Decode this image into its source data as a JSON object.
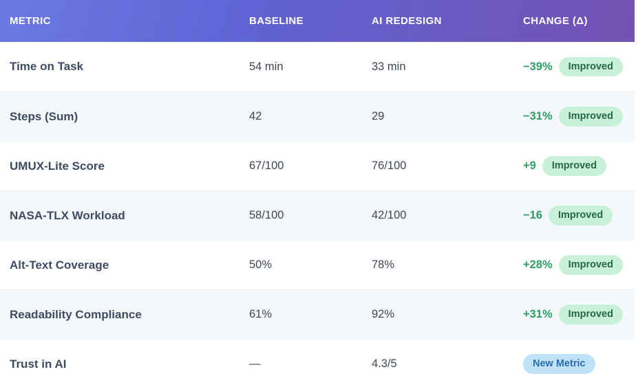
{
  "table": {
    "columns": [
      {
        "label": "METRIC"
      },
      {
        "label": "BASELINE"
      },
      {
        "label": "AI REDESIGN"
      },
      {
        "label": "CHANGE (Δ)"
      }
    ],
    "rows": [
      {
        "metric": "Time on Task",
        "baseline": "54 min",
        "redesign": "33 min",
        "delta": "−39%",
        "badge": "Improved",
        "badge_type": "improved"
      },
      {
        "metric": "Steps (Sum)",
        "baseline": "42",
        "redesign": "29",
        "delta": "−31%",
        "badge": "Improved",
        "badge_type": "improved"
      },
      {
        "metric": "UMUX-Lite Score",
        "baseline": "67/100",
        "redesign": "76/100",
        "delta": "+9",
        "badge": "Improved",
        "badge_type": "improved"
      },
      {
        "metric": "NASA-TLX Workload",
        "baseline": "58/100",
        "redesign": "42/100",
        "delta": "−16",
        "badge": "Improved",
        "badge_type": "improved"
      },
      {
        "metric": "Alt-Text Coverage",
        "baseline": "50%",
        "redesign": "78%",
        "delta": "+28%",
        "badge": "Improved",
        "badge_type": "improved"
      },
      {
        "metric": "Readability Compliance",
        "baseline": "61%",
        "redesign": "92%",
        "delta": "+31%",
        "badge": "Improved",
        "badge_type": "improved"
      },
      {
        "metric": "Trust in AI",
        "baseline": "—",
        "redesign": "4.3/5",
        "delta": "",
        "badge": "New Metric",
        "badge_type": "new"
      }
    ],
    "colors": {
      "header_gradient_start": "#6b79e4",
      "header_gradient_end": "#7452b2",
      "delta_green": "#2f9e63",
      "badge_improved_bg": "#c9f1d7",
      "badge_improved_text": "#276749",
      "badge_new_bg": "#bfe2f8",
      "badge_new_text": "#2b6cb0",
      "row_alt_bg": "#f5f8fb"
    }
  },
  "chart_data": {
    "type": "table",
    "title": "",
    "columns": [
      "METRIC",
      "BASELINE",
      "AI REDESIGN",
      "CHANGE (Δ)"
    ],
    "rows": [
      [
        "Time on Task",
        "54 min",
        "33 min",
        "−39%",
        "Improved"
      ],
      [
        "Steps (Sum)",
        "42",
        "29",
        "−31%",
        "Improved"
      ],
      [
        "UMUX-Lite Score",
        "67/100",
        "76/100",
        "+9",
        "Improved"
      ],
      [
        "NASA-TLX Workload",
        "58/100",
        "42/100",
        "−16",
        "Improved"
      ],
      [
        "Alt-Text Coverage",
        "50%",
        "78%",
        "+28%",
        "Improved"
      ],
      [
        "Readability Compliance",
        "61%",
        "92%",
        "+31%",
        "Improved"
      ],
      [
        "Trust in AI",
        "—",
        "4.3/5",
        "",
        "New Metric"
      ]
    ]
  }
}
